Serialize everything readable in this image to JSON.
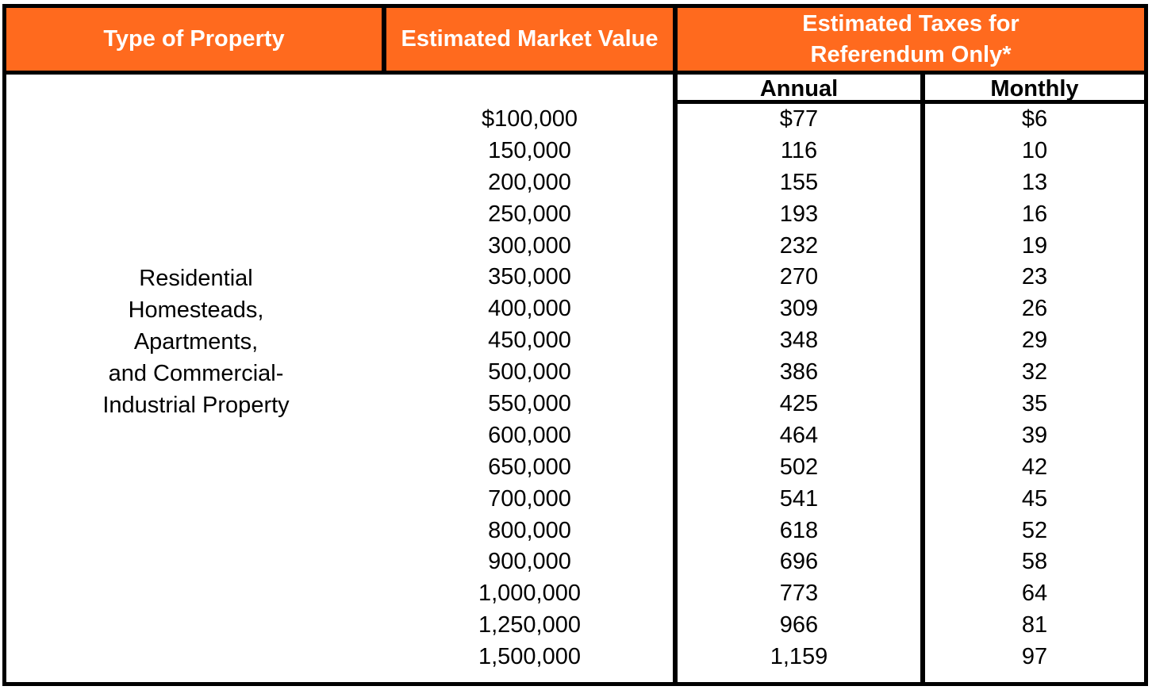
{
  "header": {
    "type_of_property": "Type of Property",
    "estimated_market_value": "Estimated Market Value",
    "estimated_taxes_line1": "Estimated Taxes for",
    "estimated_taxes_line2": "Referendum Only*",
    "annual": "Annual",
    "monthly": "Monthly"
  },
  "property_type_lines": [
    "Residential",
    "Homesteads,",
    "Apartments,",
    "and Commercial-",
    "Industrial Property"
  ],
  "rows": [
    {
      "value": "$100,000",
      "annual": "$77",
      "monthly": "$6"
    },
    {
      "value": "150,000",
      "annual": "116",
      "monthly": "10"
    },
    {
      "value": "200,000",
      "annual": "155",
      "monthly": "13"
    },
    {
      "value": "250,000",
      "annual": "193",
      "monthly": "16"
    },
    {
      "value": "300,000",
      "annual": "232",
      "monthly": "19"
    },
    {
      "value": "350,000",
      "annual": "270",
      "monthly": "23"
    },
    {
      "value": "400,000",
      "annual": "309",
      "monthly": "26"
    },
    {
      "value": "450,000",
      "annual": "348",
      "monthly": "29"
    },
    {
      "value": "500,000",
      "annual": "386",
      "monthly": "32"
    },
    {
      "value": "550,000",
      "annual": "425",
      "monthly": "35"
    },
    {
      "value": "600,000",
      "annual": "464",
      "monthly": "39"
    },
    {
      "value": "650,000",
      "annual": "502",
      "monthly": "42"
    },
    {
      "value": "700,000",
      "annual": "541",
      "monthly": "45"
    },
    {
      "value": "800,000",
      "annual": "618",
      "monthly": "52"
    },
    {
      "value": "900,000",
      "annual": "696",
      "monthly": "58"
    },
    {
      "value": "1,000,000",
      "annual": "773",
      "monthly": "64"
    },
    {
      "value": "1,250,000",
      "annual": "966",
      "monthly": "81"
    },
    {
      "value": "1,500,000",
      "annual": "1,159",
      "monthly": "97"
    }
  ],
  "colors": {
    "header_bg": "#ff6a1e",
    "header_text": "#ffffff",
    "border": "#000000"
  }
}
